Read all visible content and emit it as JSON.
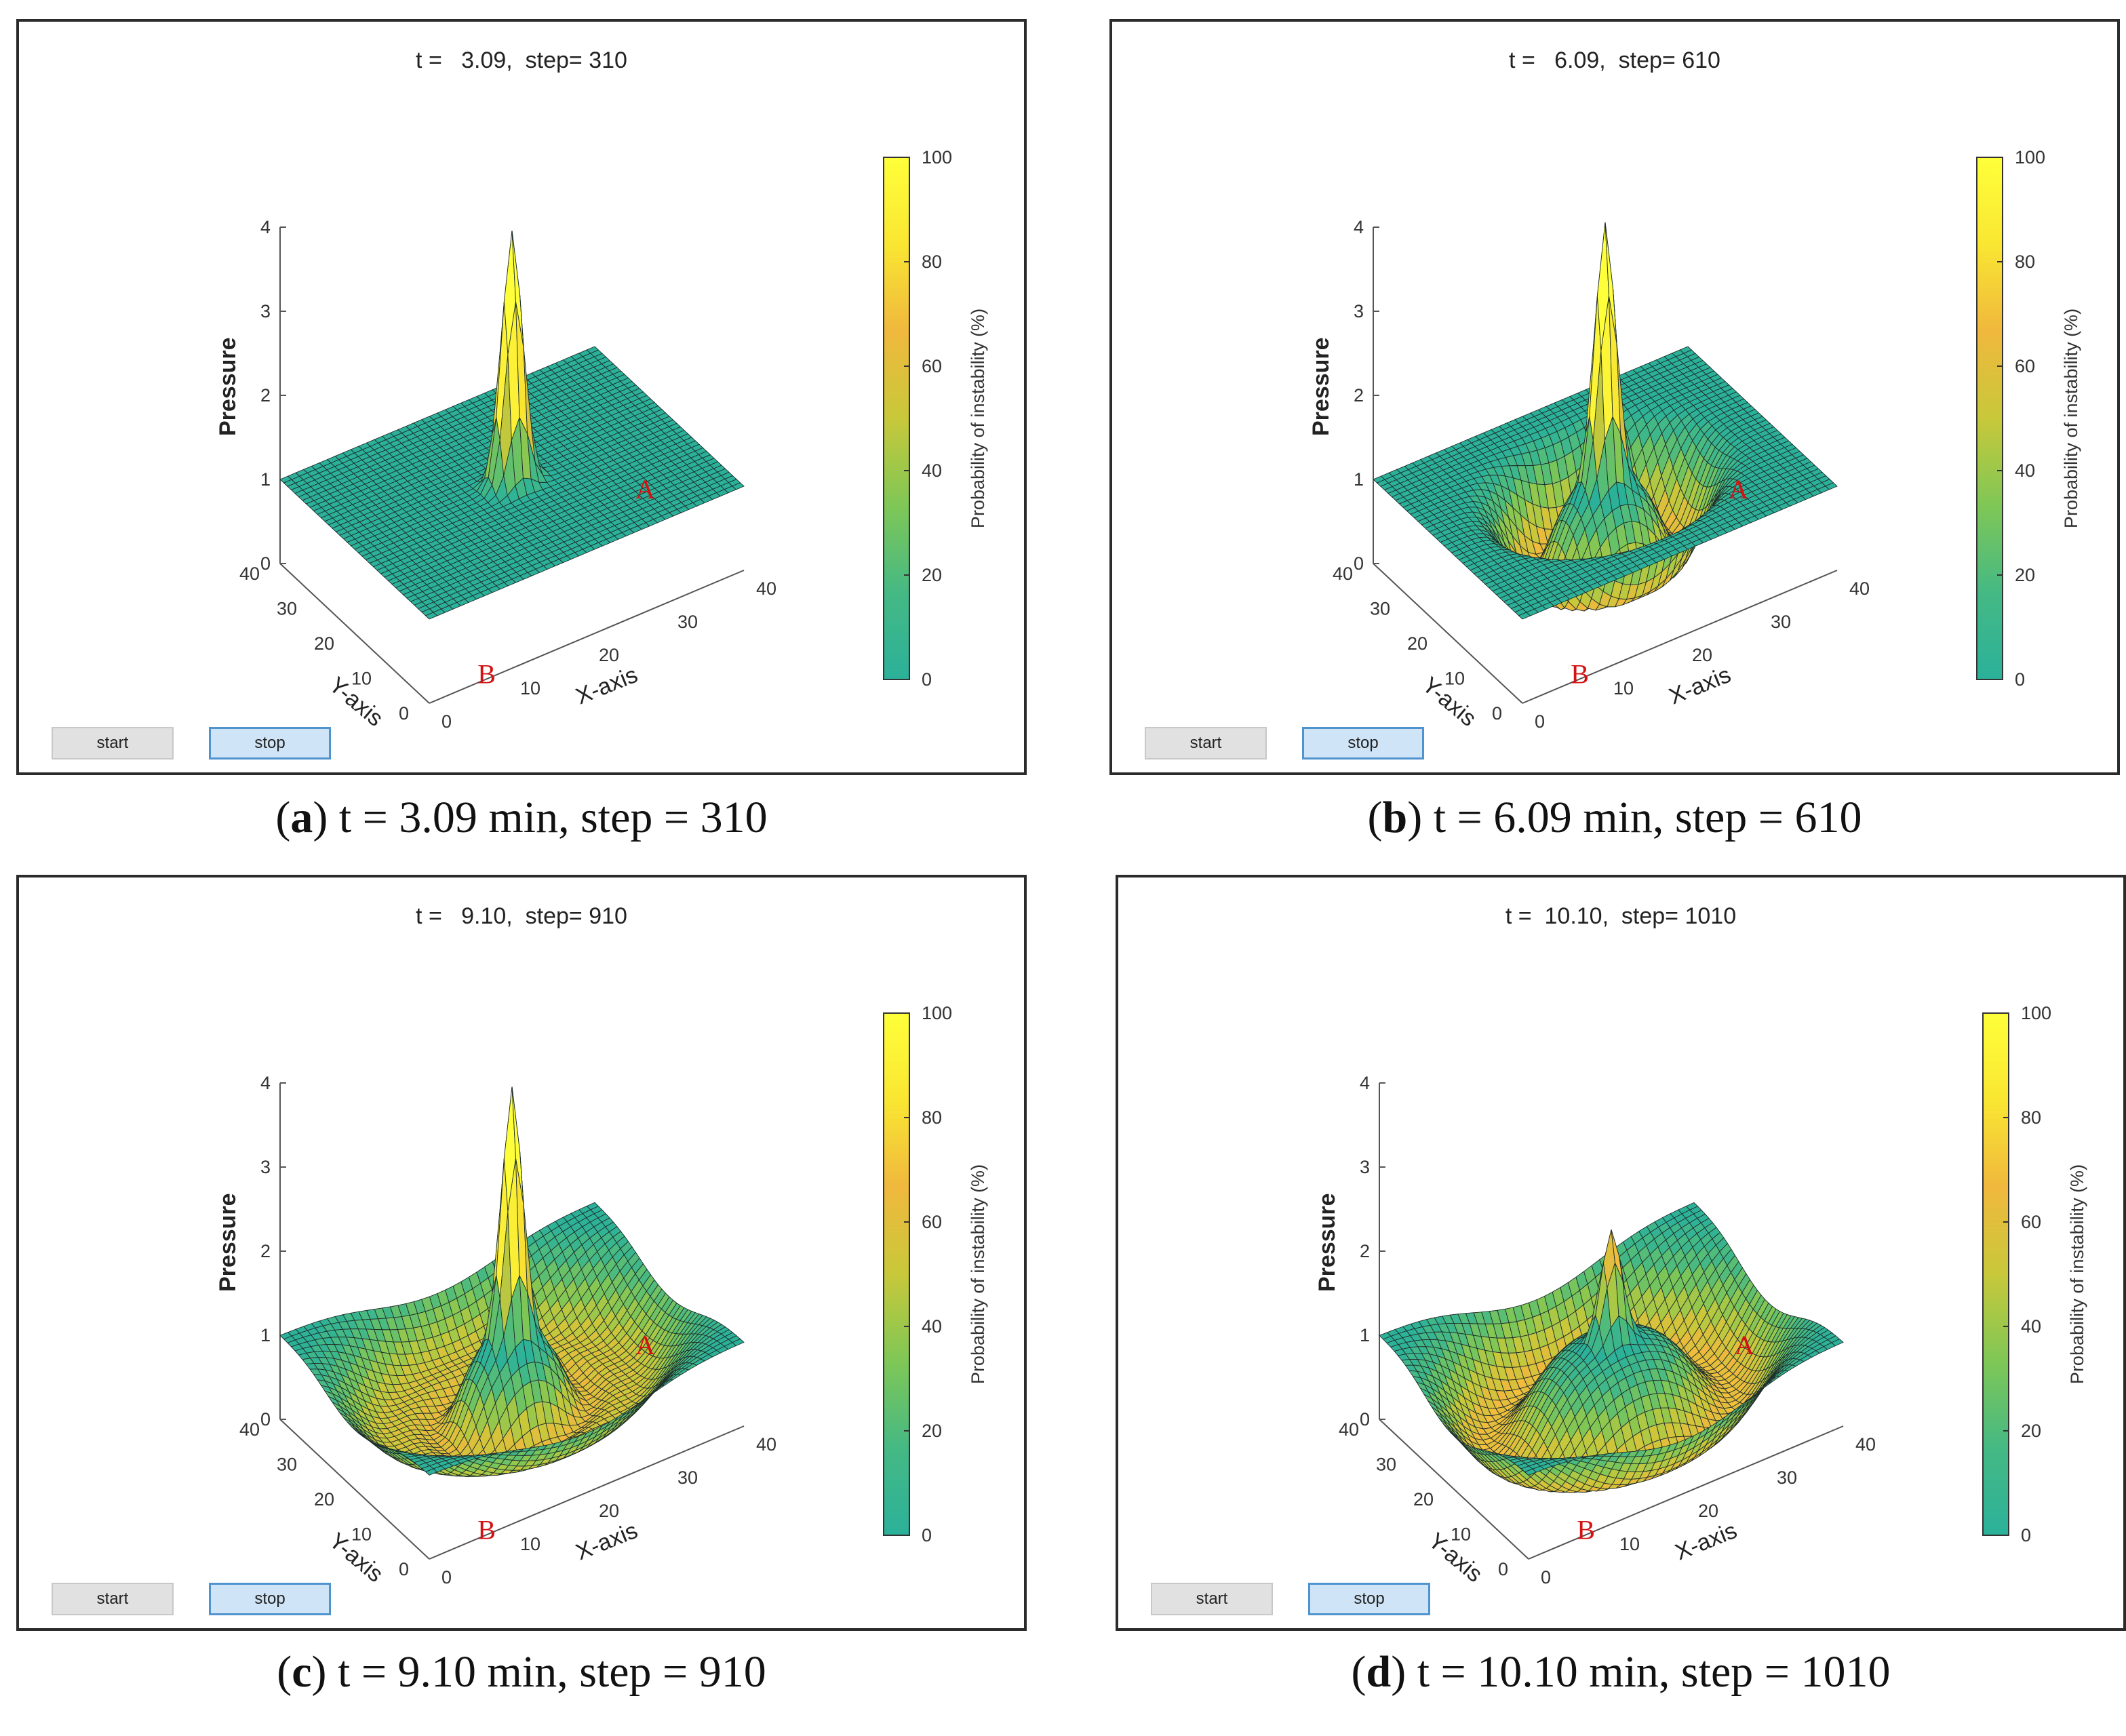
{
  "panels": [
    {
      "id": "a",
      "title": "t =   3.09,  step= 310",
      "caption_letter": "a",
      "caption_text": "t = 3.09 min, step = 310",
      "buttons": {
        "start": "start",
        "stop": "stop"
      },
      "rings": [],
      "peak": 3.0
    },
    {
      "id": "b",
      "title": "t =   6.09,  step= 610",
      "caption_letter": "b",
      "caption_text": "t = 6.09 min, step = 610",
      "buttons": {
        "start": "start",
        "stop": "stop"
      },
      "rings": [
        {
          "r": 9,
          "w": 3.5,
          "depth": 1.0
        }
      ],
      "peak": 3.1
    },
    {
      "id": "c",
      "title": "t =   9.10,  step= 910",
      "caption_letter": "c",
      "caption_text": "t = 9.10 min, step = 910",
      "buttons": {
        "start": "start",
        "stop": "stop"
      },
      "rings": [
        {
          "r": 14,
          "w": 6,
          "depth": 0.8
        },
        {
          "r": 8,
          "w": 3,
          "depth": 0.6
        }
      ],
      "peak": 3.0
    },
    {
      "id": "d",
      "title": "t =  10.10,  step= 1010",
      "caption_letter": "d",
      "caption_text": "t = 10.10 min, step = 1010",
      "buttons": {
        "start": "start",
        "stop": "stop"
      },
      "rings": [
        {
          "r": 14,
          "w": 6,
          "depth": 1.0
        }
      ],
      "peak": 1.3
    }
  ],
  "axes": {
    "z_label": "Pressure",
    "x_label": "X-axis",
    "y_label": "Y-axis",
    "z_ticks": [
      "0",
      "1",
      "2",
      "3",
      "4"
    ],
    "x_ticks": [
      "0",
      "10",
      "20",
      "30",
      "40"
    ],
    "y_ticks": [
      "0",
      "10",
      "20",
      "30",
      "40"
    ]
  },
  "colorbar": {
    "label": "Probability of instability (%)",
    "ticks": [
      "0",
      "20",
      "40",
      "60",
      "80",
      "100"
    ],
    "colormap": [
      "#2bb19a",
      "#45b984",
      "#7fc756",
      "#c8c83a",
      "#f0b83d",
      "#f9e632",
      "#ffff3a"
    ]
  },
  "markers": {
    "a": "A",
    "b": "B"
  }
}
